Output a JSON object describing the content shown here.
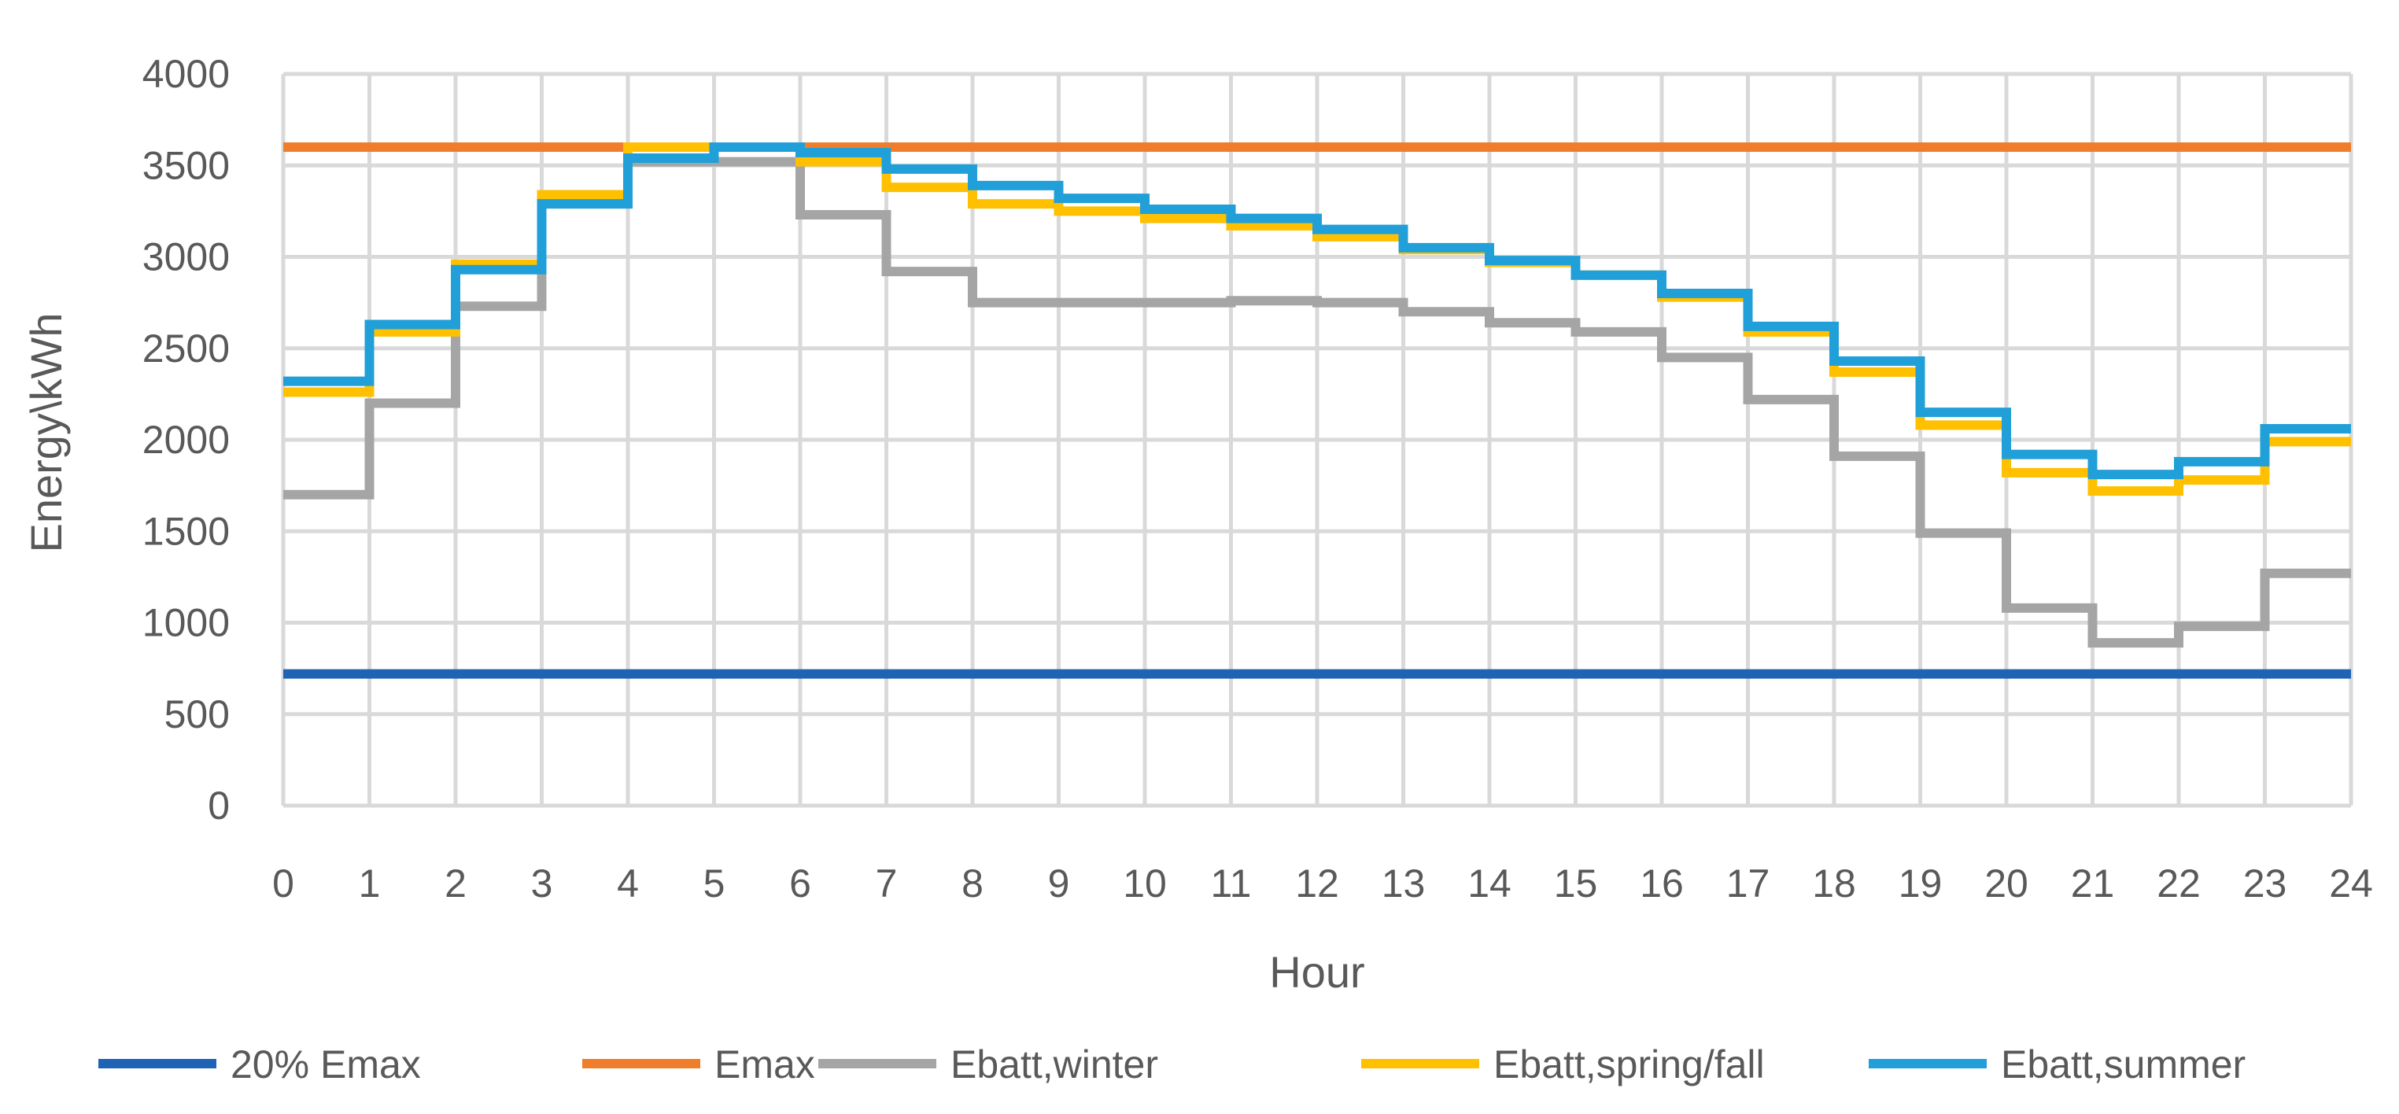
{
  "chart_data": {
    "type": "line",
    "step": "post",
    "xlabel": "Hour",
    "ylabel": "Energy\\kWh",
    "xlim": [
      0,
      24
    ],
    "ylim": [
      0,
      4000
    ],
    "x_ticks": [
      "0",
      "1",
      "2",
      "3",
      "4",
      "5",
      "6",
      "7",
      "8",
      "9",
      "10",
      "11",
      "12",
      "13",
      "14",
      "15",
      "16",
      "17",
      "18",
      "19",
      "20",
      "21",
      "22",
      "23",
      "24"
    ],
    "y_ticks": [
      "0",
      "500",
      "1000",
      "1500",
      "2000",
      "2500",
      "3000",
      "3500",
      "4000"
    ],
    "grid": true,
    "legend_position": "bottom",
    "x": [
      0,
      1,
      2,
      3,
      4,
      5,
      6,
      7,
      8,
      9,
      10,
      11,
      12,
      13,
      14,
      15,
      16,
      17,
      18,
      19,
      20,
      21,
      22,
      23,
      24
    ],
    "series": [
      {
        "name": "20% Emax",
        "color": "#1f63b5",
        "values": [
          720,
          720,
          720,
          720,
          720,
          720,
          720,
          720,
          720,
          720,
          720,
          720,
          720,
          720,
          720,
          720,
          720,
          720,
          720,
          720,
          720,
          720,
          720,
          720,
          720
        ]
      },
      {
        "name": "Emax",
        "color": "#f07d2c",
        "values": [
          3600,
          3600,
          3600,
          3600,
          3600,
          3600,
          3600,
          3600,
          3600,
          3600,
          3600,
          3600,
          3600,
          3600,
          3600,
          3600,
          3600,
          3600,
          3600,
          3600,
          3600,
          3600,
          3600,
          3600,
          3600
        ]
      },
      {
        "name": "Ebatt,winter",
        "color": "#a5a5a5",
        "values": [
          1700,
          2200,
          2730,
          3290,
          3520,
          3520,
          3230,
          2920,
          2750,
          2750,
          2750,
          2760,
          2750,
          2700,
          2640,
          2590,
          2450,
          2220,
          1910,
          1490,
          1080,
          890,
          980,
          1270,
          1270
        ]
      },
      {
        "name": "Ebatt,spring/fall",
        "color": "#ffc000",
        "values": [
          2260,
          2590,
          2960,
          3340,
          3600,
          3600,
          3520,
          3380,
          3290,
          3250,
          3210,
          3170,
          3110,
          3040,
          2970,
          2900,
          2780,
          2590,
          2370,
          2080,
          1820,
          1720,
          1780,
          1990,
          1990
        ]
      },
      {
        "name": "Ebatt,summer",
        "color": "#209fd8",
        "values": [
          2320,
          2630,
          2930,
          3290,
          3540,
          3600,
          3570,
          3480,
          3390,
          3320,
          3260,
          3210,
          3150,
          3050,
          2980,
          2900,
          2800,
          2620,
          2430,
          2150,
          1920,
          1810,
          1880,
          2060,
          2060
        ]
      }
    ]
  }
}
